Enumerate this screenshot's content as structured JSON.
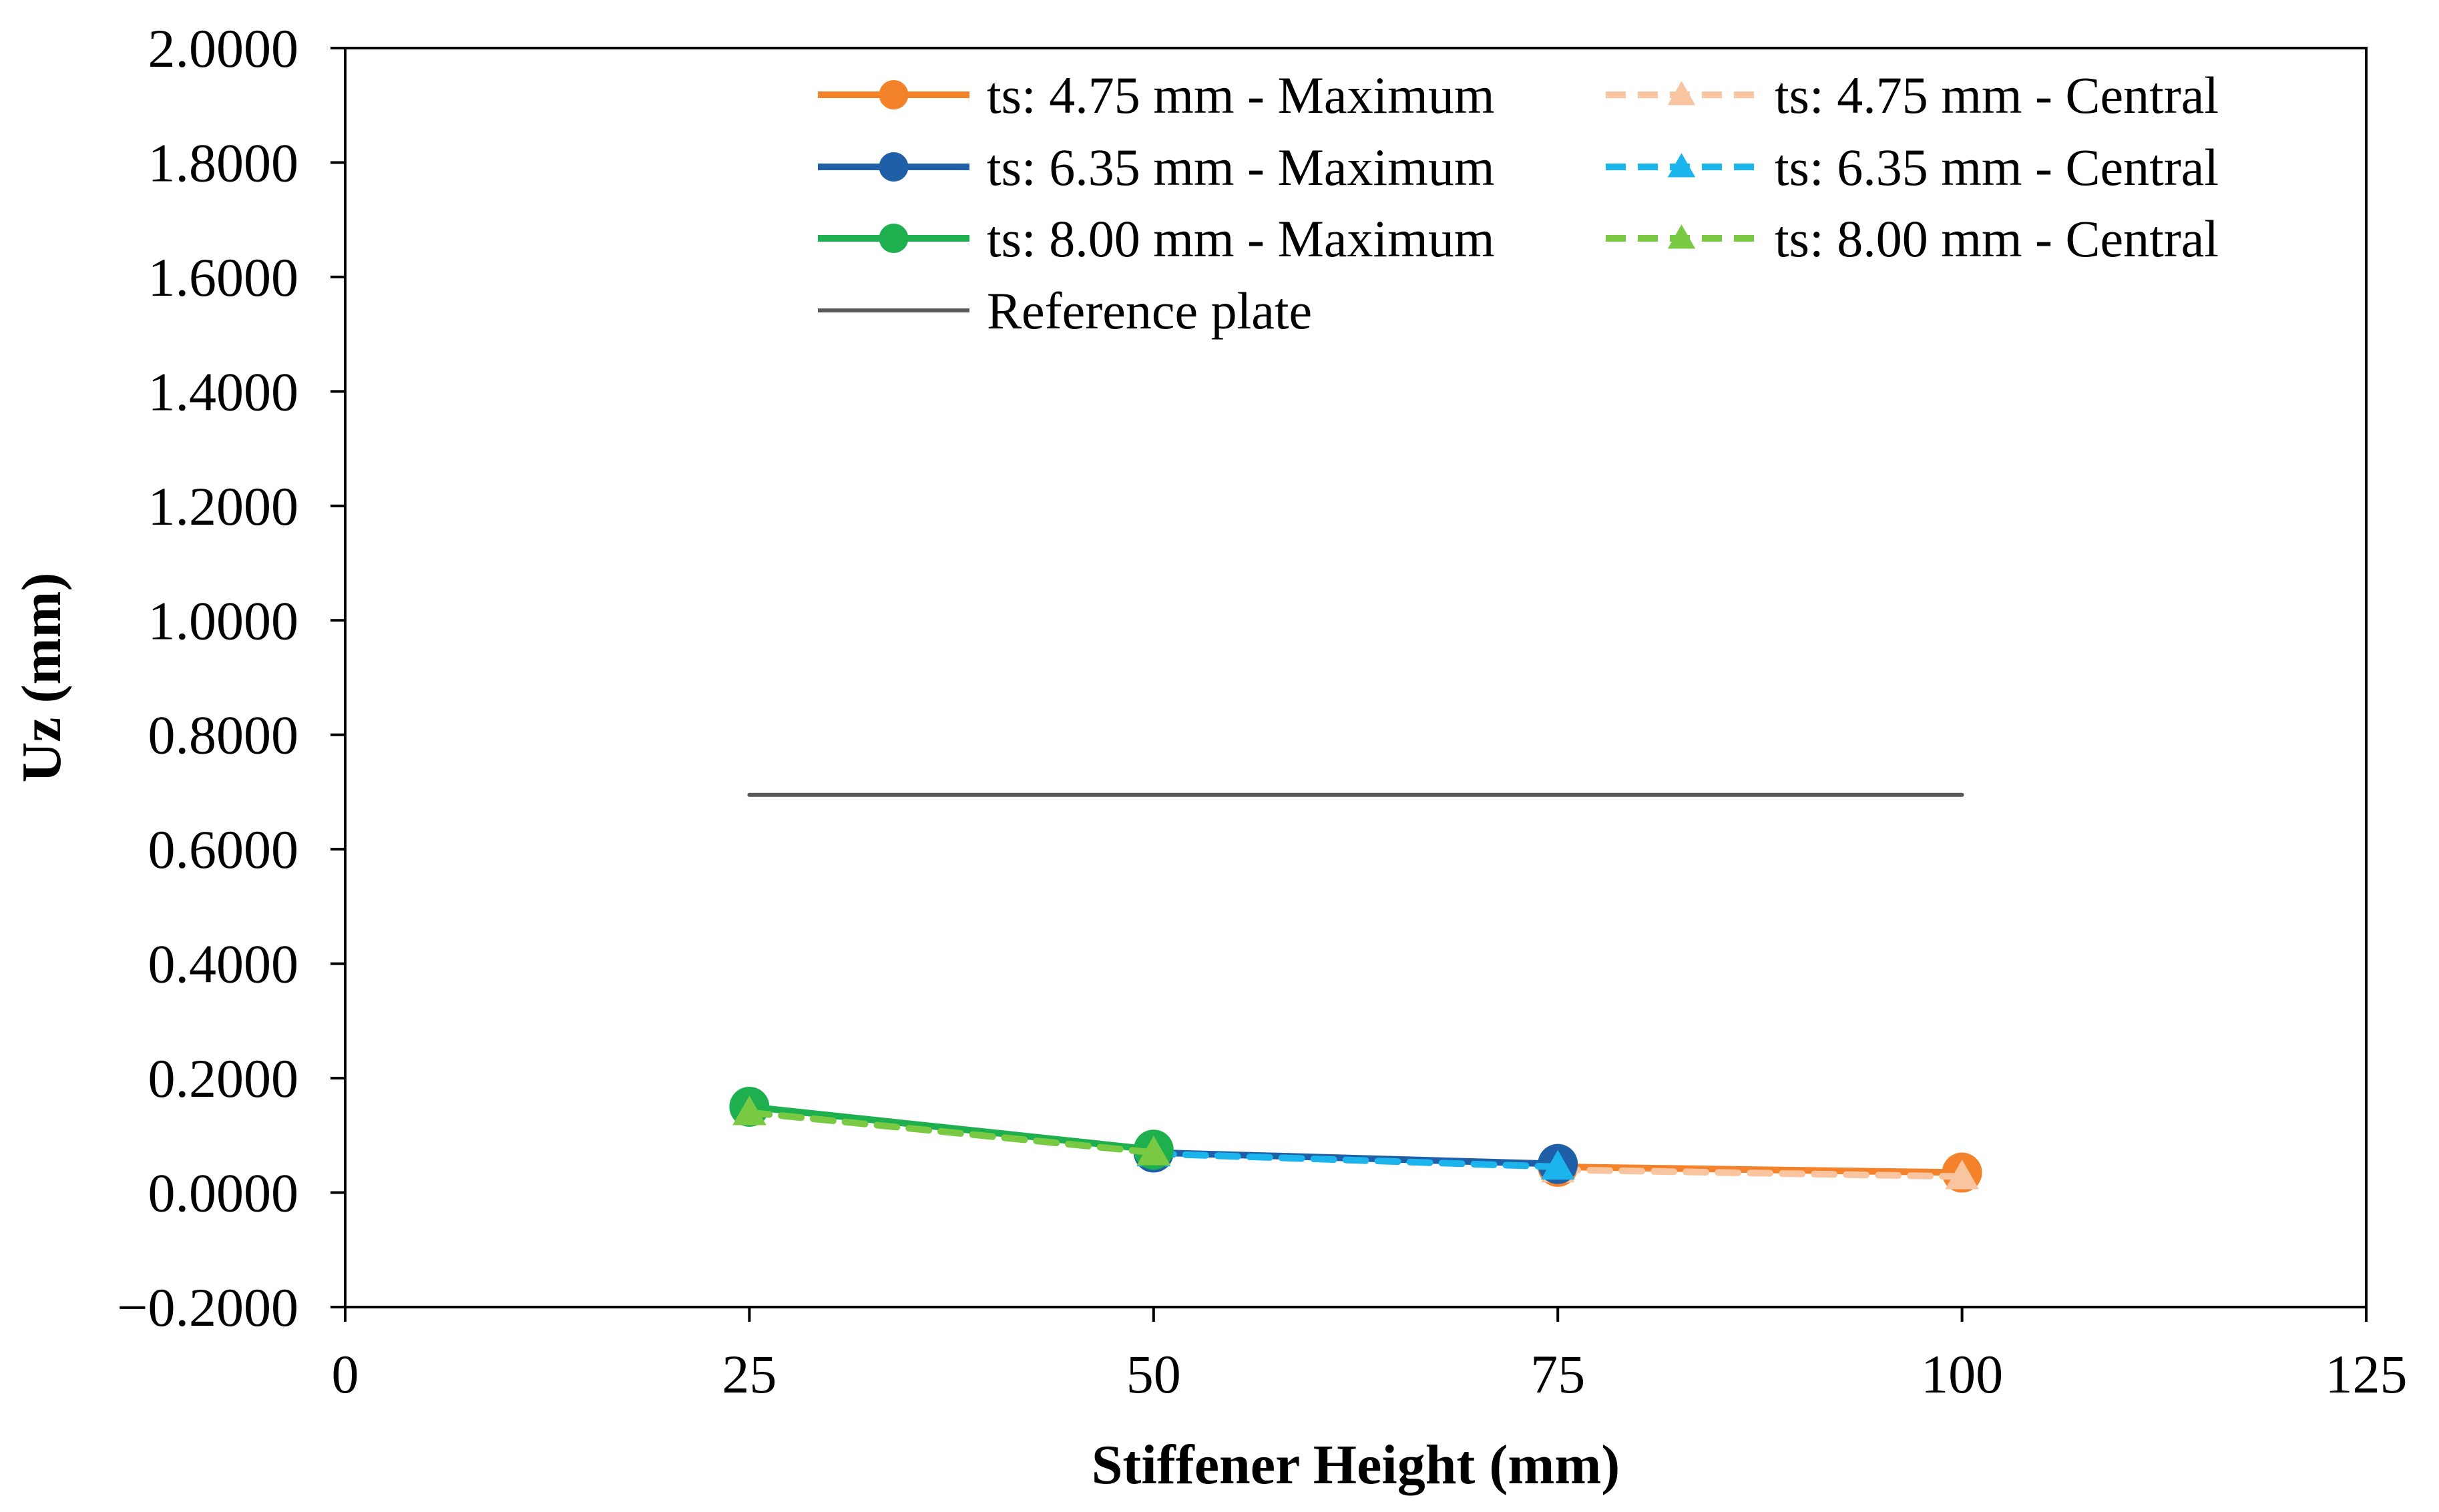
{
  "chart_data": {
    "type": "line",
    "title": "",
    "xlabel": "Stiffener Height (mm)",
    "ylabel": "Uz (mm)",
    "xlim": [
      0,
      125
    ],
    "ylim": [
      -0.2,
      2.0
    ],
    "xticks": [
      0,
      25,
      50,
      75,
      100,
      125
    ],
    "yticks": [
      -0.2,
      0.0,
      0.2,
      0.4,
      0.6,
      0.8,
      1.0,
      1.2,
      1.4,
      1.6,
      1.8,
      2.0
    ],
    "xtick_labels": [
      "0",
      "25",
      "50",
      "75",
      "100",
      "125"
    ],
    "ytick_labels": [
      "−0.2000",
      "0.0000",
      "0.2000",
      "0.4000",
      "0.6000",
      "0.8000",
      "1.0000",
      "1.2000",
      "1.4000",
      "1.6000",
      "1.8000",
      "2.0000"
    ],
    "grid": false,
    "legend_position": "top-right",
    "series": [
      {
        "name": "ts: 4.75 mm - Maximum",
        "color": "#F4822A",
        "style": "solid",
        "marker": "circle",
        "x": [
          75,
          100
        ],
        "y": [
          0.045,
          0.035
        ]
      },
      {
        "name": "ts: 4.75 mm - Central",
        "color": "#F9C5A0",
        "style": "dashed",
        "marker": "triangle",
        "x": [
          75,
          100
        ],
        "y": [
          0.04,
          0.028
        ]
      },
      {
        "name": "ts: 6.35 mm - Maximum",
        "color": "#1F5FA8",
        "style": "solid",
        "marker": "circle",
        "x": [
          50,
          75
        ],
        "y": [
          0.07,
          0.05
        ]
      },
      {
        "name": "ts: 6.35 mm - Central",
        "color": "#1CB4EC",
        "style": "dashed",
        "marker": "triangle",
        "x": [
          50,
          75
        ],
        "y": [
          0.068,
          0.045
        ]
      },
      {
        "name": "ts: 8.00 mm - Maximum",
        "color": "#1EB04F",
        "style": "solid",
        "marker": "circle",
        "x": [
          25,
          50
        ],
        "y": [
          0.15,
          0.075
        ]
      },
      {
        "name": "ts: 8.00 mm - Central",
        "color": "#7AC943",
        "style": "dashed",
        "marker": "triangle",
        "x": [
          25,
          50
        ],
        "y": [
          0.14,
          0.07
        ]
      },
      {
        "name": "Reference plate",
        "color": "#595959",
        "style": "solid",
        "marker": "none",
        "x": [
          25,
          100
        ],
        "y": [
          0.695,
          0.695
        ]
      }
    ]
  }
}
